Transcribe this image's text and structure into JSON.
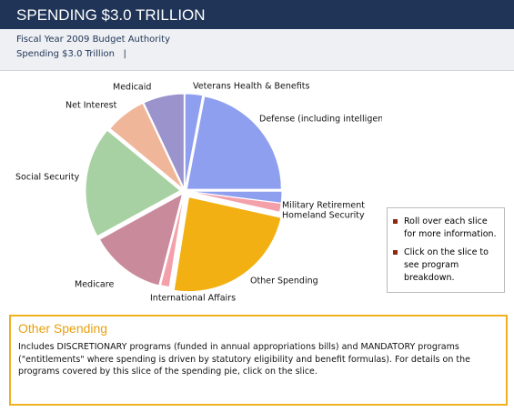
{
  "header": {
    "title": "SPENDING $3.0 TRILLION",
    "subtitle": "Fiscal Year 2009 Budget Authority",
    "breadcrumb": "Spending $3.0 Trillion",
    "separator": "|"
  },
  "chart_data": {
    "type": "pie",
    "categories": [
      "Veterans Health & Benefits",
      "Defense (including intelligence)",
      "Military Retirement",
      "Homeland Security",
      "Other Spending",
      "International Affairs",
      "Medicare",
      "Social Security",
      "Net Interest",
      "Medicaid"
    ],
    "values": [
      3,
      22,
      2,
      1.5,
      24,
      1.5,
      13,
      19,
      7,
      7
    ],
    "colors": [
      "#8e9ff0",
      "#8e9ff0",
      "#8e9ff0",
      "#f4a0aa",
      "#f2b013",
      "#f4a0aa",
      "#c98a9c",
      "#a7d1a2",
      "#f0b699",
      "#9a93cc"
    ]
  },
  "legend": {
    "items": [
      "Roll over each slice for more information.",
      "Click on the slice to see program breakdown."
    ]
  },
  "info": {
    "title": "Other Spending",
    "text": "Includes DISCRETIONARY programs (funded in annual appropriations bills) and MANDATORY programs (\"entitlements\" where spending is driven by statutory eligibility and benefit formulas).  For details on the programs covered by this slice of the spending pie, click on the slice."
  }
}
